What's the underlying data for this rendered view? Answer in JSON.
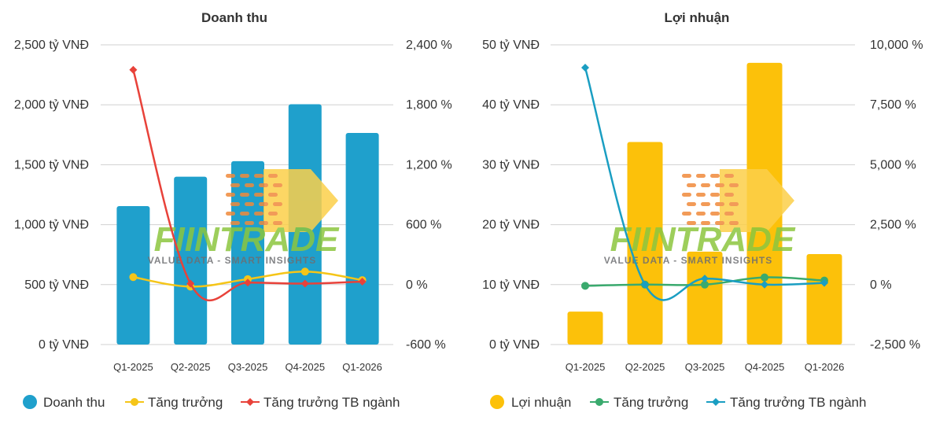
{
  "chart_data": [
    {
      "type": "bar",
      "title": "Doanh thu",
      "categories": [
        "Q1-2025",
        "Q2-2025",
        "Q3-2025",
        "Q4-2025",
        "Q1-2026"
      ],
      "left_axis": {
        "min": 0,
        "max": 2500,
        "ticks": [
          0,
          500,
          1000,
          1500,
          2000,
          2500
        ],
        "tick_labels": [
          "0 tỷ VNĐ",
          "500 tỷ VNĐ",
          "1,000 tỷ VNĐ",
          "1,500 tỷ VNĐ",
          "2,000 tỷ VNĐ",
          "2,500 tỷ VNĐ"
        ]
      },
      "right_axis": {
        "min": -600,
        "max": 2400,
        "ticks": [
          -600,
          0,
          600,
          1200,
          1800,
          2400
        ],
        "tick_labels": [
          "-600 %",
          "0 %",
          "600 %",
          "1,200 %",
          "1,800 %",
          "2,400 %"
        ]
      },
      "grid": true,
      "legend_position": "bottom",
      "series": [
        {
          "name": "Doanh thu",
          "kind": "bar",
          "axis": "left",
          "color": "#1fa0cc",
          "values": [
            1155,
            1400,
            1530,
            2005,
            1765
          ]
        },
        {
          "name": "Tăng trưởng",
          "kind": "line",
          "axis": "right",
          "color": "#f5c518",
          "marker": "circle",
          "smooth": true,
          "values": [
            75,
            -20,
            55,
            130,
            45
          ]
        },
        {
          "name": "Tăng trưởng TB ngành",
          "kind": "line",
          "axis": "right",
          "color": "#e8423a",
          "marker": "diamond",
          "smooth": true,
          "values": [
            2150,
            10,
            20,
            10,
            30
          ]
        }
      ]
    },
    {
      "type": "bar",
      "title": "Lợi nhuận",
      "categories": [
        "Q1-2025",
        "Q2-2025",
        "Q3-2025",
        "Q4-2025",
        "Q1-2026"
      ],
      "left_axis": {
        "min": 0,
        "max": 50,
        "ticks": [
          0,
          10,
          20,
          30,
          40,
          50
        ],
        "tick_labels": [
          "0 tỷ VNĐ",
          "10 tỷ VNĐ",
          "20 tỷ VNĐ",
          "30 tỷ VNĐ",
          "40 tỷ VNĐ",
          "50 tỷ VNĐ"
        ]
      },
      "right_axis": {
        "min": -2500,
        "max": 10000,
        "ticks": [
          -2500,
          0,
          2500,
          5000,
          7500,
          10000
        ],
        "tick_labels": [
          "-2,500 %",
          "0 %",
          "2,500 %",
          "5,000 %",
          "7,500 %",
          "10,000 %"
        ]
      },
      "grid": true,
      "legend_position": "bottom",
      "series": [
        {
          "name": "Lợi nhuận",
          "kind": "bar",
          "axis": "left",
          "color": "#fcc10a",
          "values": [
            5.5,
            33.8,
            15.5,
            47,
            15.1
          ]
        },
        {
          "name": "Tăng trưởng",
          "kind": "line",
          "axis": "right",
          "color": "#3aaa6e",
          "marker": "circle",
          "smooth": true,
          "values": [
            -50,
            0,
            0,
            300,
            170
          ]
        },
        {
          "name": "Tăng trưởng TB ngành",
          "kind": "line",
          "axis": "right",
          "color": "#1a9ec2",
          "marker": "diamond",
          "smooth": true,
          "values": [
            9050,
            0,
            250,
            0,
            70
          ]
        }
      ]
    }
  ],
  "watermark": {
    "text": "FIINTRADE",
    "tagline": "VALUE DATA - SMART INSIGHTS"
  }
}
